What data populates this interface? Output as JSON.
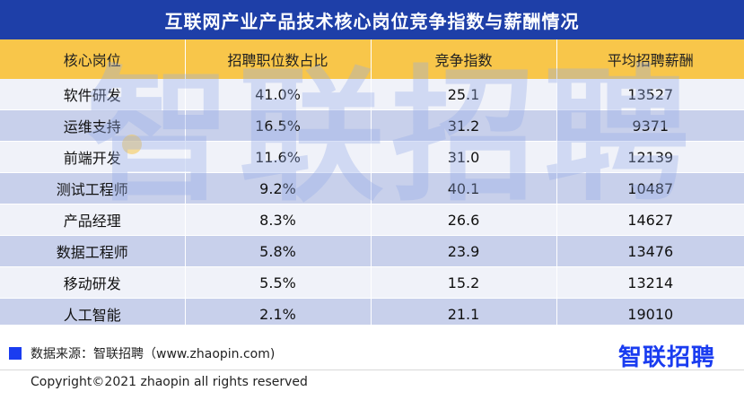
{
  "title": "互联网产业产品技术核心岗位竞争指数与薪酬情况",
  "chart_data": {
    "type": "table",
    "columns": [
      "核心岗位",
      "招聘职位数占比",
      "竞争指数",
      "平均招聘薪酬"
    ],
    "rows": [
      [
        "软件研发",
        "41.0%",
        "25.1",
        "13527"
      ],
      [
        "运维支持",
        "16.5%",
        "31.2",
        "9371"
      ],
      [
        "前端开发",
        "11.6%",
        "31.0",
        "12139"
      ],
      [
        "测试工程师",
        "9.2%",
        "40.1",
        "10487"
      ],
      [
        "产品经理",
        "8.3%",
        "26.6",
        "14627"
      ],
      [
        "数据工程师",
        "5.8%",
        "23.9",
        "13476"
      ],
      [
        "移动研发",
        "5.5%",
        "15.2",
        "13214"
      ],
      [
        "人工智能",
        "2.1%",
        "21.1",
        "19010"
      ]
    ]
  },
  "watermark": "智联招聘",
  "source": "数据来源：智联招聘（www.zhaopin.com)",
  "logo": "智联招聘",
  "copyright": "Copyright©2021 zhaopin all rights reserved",
  "colors": {
    "title_bg": "#1e3fa8",
    "header_bg": "#f8c64a",
    "row_odd": "#eef0f8",
    "row_even": "#bec8e8",
    "brand_blue": "#1a3cf0"
  }
}
